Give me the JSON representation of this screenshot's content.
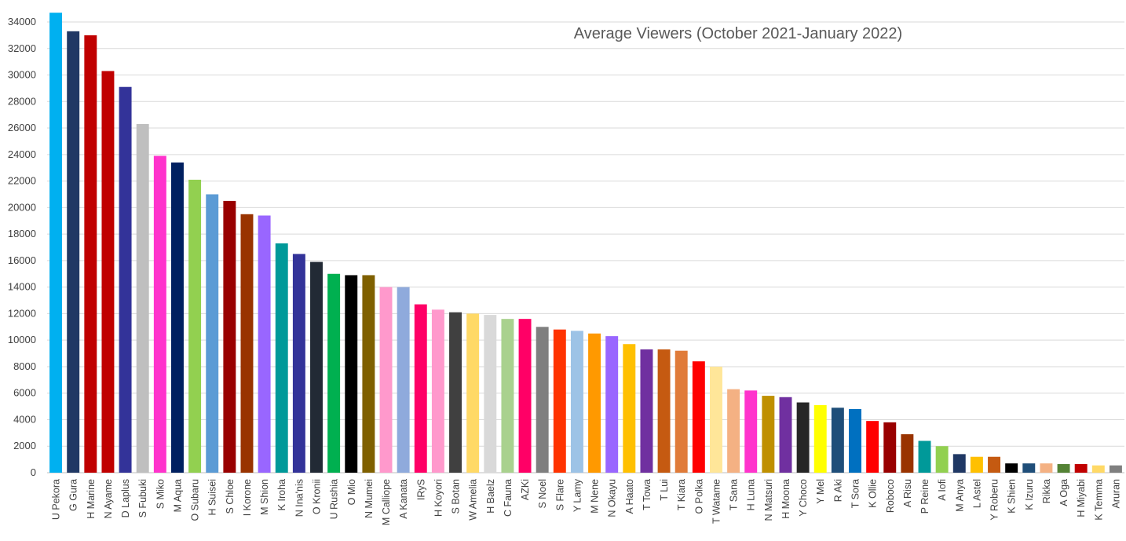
{
  "chart_data": {
    "type": "bar",
    "title": "Average Viewers (October 2021-January 2022)",
    "xlabel": "",
    "ylabel": "",
    "ylim": [
      0,
      34000
    ],
    "yticks": [
      0,
      2000,
      4000,
      6000,
      8000,
      10000,
      12000,
      14000,
      16000,
      18000,
      20000,
      22000,
      24000,
      26000,
      28000,
      30000,
      32000,
      34000
    ],
    "grid": true,
    "legend": "none",
    "categories": [
      "U Pekora",
      "G Gura",
      "H Marine",
      "N Ayame",
      "D Laplus",
      "S Fubuki",
      "S Miko",
      "M Aqua",
      "O Subaru",
      "H Suisei",
      "S Chloe",
      "I Korone",
      "M Shion",
      "K Iroha",
      "N Ina'nis",
      "O Kronii",
      "U Rushia",
      "O Mio",
      "N Mumei",
      "M Calliope",
      "A Kanata",
      "IRyS",
      "H Koyori",
      "S Botan",
      "W Amelia",
      "H Baelz",
      "C Fauna",
      "AZKi",
      "S Noel",
      "S Flare",
      "Y Lamy",
      "M Nene",
      "N Okayu",
      "A Haato",
      "T Towa",
      "T Lui",
      "T Kiara",
      "O Polka",
      "T Watame",
      "T Sana",
      "H Luna",
      "N Matsuri",
      "H Moona",
      "Y Choco",
      "Y Mel",
      "R Aki",
      "T Sora",
      "K Ollie",
      "Roboco",
      "A Risu",
      "P Reine",
      "A Iofi",
      "M Anya",
      "L Astel",
      "Y Roberu",
      "K Shien",
      "K Izuru",
      "Rikka",
      "A Oga",
      "H Miyabi",
      "K Temma",
      "Aruran"
    ],
    "values": [
      34700,
      33300,
      33000,
      30300,
      29100,
      26300,
      23900,
      23400,
      22100,
      21000,
      20500,
      19500,
      19400,
      17300,
      16500,
      15900,
      15000,
      14900,
      14900,
      14000,
      14000,
      12700,
      12300,
      12100,
      12000,
      11900,
      11600,
      11600,
      11000,
      10800,
      10700,
      10500,
      10300,
      9700,
      9300,
      9300,
      9200,
      8400,
      8000,
      6300,
      6200,
      5800,
      5700,
      5300,
      5100,
      4900,
      4800,
      3900,
      3800,
      2900,
      2400,
      2000,
      1400,
      1200,
      1200,
      700,
      700,
      700,
      650,
      650,
      550,
      550
    ],
    "colors": [
      "#00b0f0",
      "#203864",
      "#c00000",
      "#c00000",
      "#333399",
      "#bfbfbf",
      "#ff33cc",
      "#002060",
      "#92d050",
      "#5b9bd5",
      "#990000",
      "#993300",
      "#9966ff",
      "#009999",
      "#333399",
      "#222a35",
      "#00b050",
      "#000000",
      "#7f6000",
      "#ff99cc",
      "#8faadc",
      "#ff0066",
      "#ff99cc",
      "#404040",
      "#ffd966",
      "#d9d9d9",
      "#a9d18e",
      "#ff0066",
      "#7f7f7f",
      "#ff3300",
      "#9dc3e6",
      "#ff9900",
      "#9966ff",
      "#ffc000",
      "#7030a0",
      "#c55a11",
      "#e07b39",
      "#ff0000",
      "#ffe699",
      "#f4b183",
      "#ff33cc",
      "#bf9000",
      "#7030a0",
      "#262626",
      "#ffff00",
      "#1f4e79",
      "#0070c0",
      "#ff0000",
      "#990000",
      "#993300",
      "#009999",
      "#92d050",
      "#203864",
      "#ffc000",
      "#c55a11",
      "#000000",
      "#1f4e79",
      "#f4b183",
      "#548235",
      "#c00000",
      "#ffd966",
      "#7f7f7f"
    ]
  }
}
